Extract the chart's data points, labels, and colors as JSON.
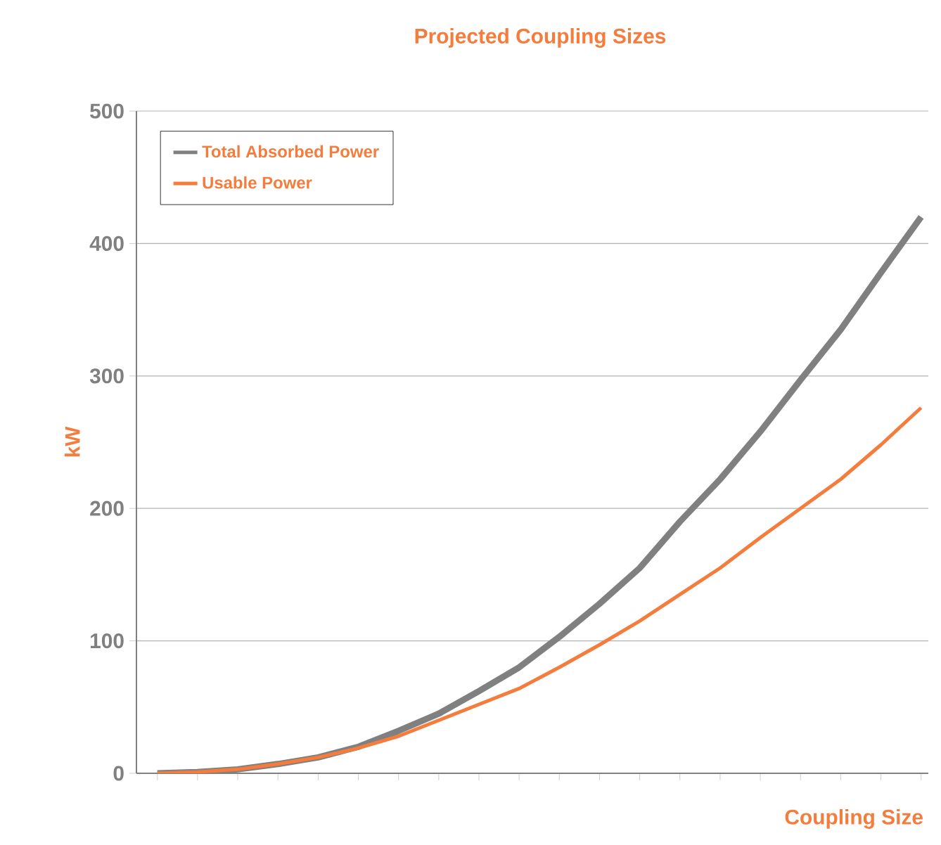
{
  "chart_data": {
    "type": "line",
    "title": "Projected Coupling Sizes",
    "xlabel": "Coupling Size",
    "ylabel": "kW",
    "categories": [
      null,
      null,
      null,
      null,
      null,
      null,
      null,
      null,
      null,
      null,
      null,
      null,
      null,
      null,
      null,
      null,
      null,
      null,
      null,
      null
    ],
    "series": [
      {
        "name": "Total Absorbed Power",
        "color": "#808080",
        "values": [
          0,
          1,
          3,
          7,
          12,
          20,
          32,
          45,
          62,
          80,
          103,
          128,
          155,
          190,
          222,
          258,
          297,
          335,
          378,
          420
        ]
      },
      {
        "name": "Usable Power",
        "color": "#f47c3c",
        "values": [
          0,
          1,
          3,
          7,
          12,
          19,
          28,
          40,
          52,
          64,
          80,
          97,
          115,
          135,
          155,
          178,
          200,
          222,
          248,
          276
        ]
      }
    ],
    "ylim": [
      0,
      500
    ],
    "yticks": [
      0,
      100,
      200,
      300,
      400,
      500
    ],
    "grid": "y",
    "legend": "top left",
    "marker": "none",
    "line_style": "solid"
  }
}
